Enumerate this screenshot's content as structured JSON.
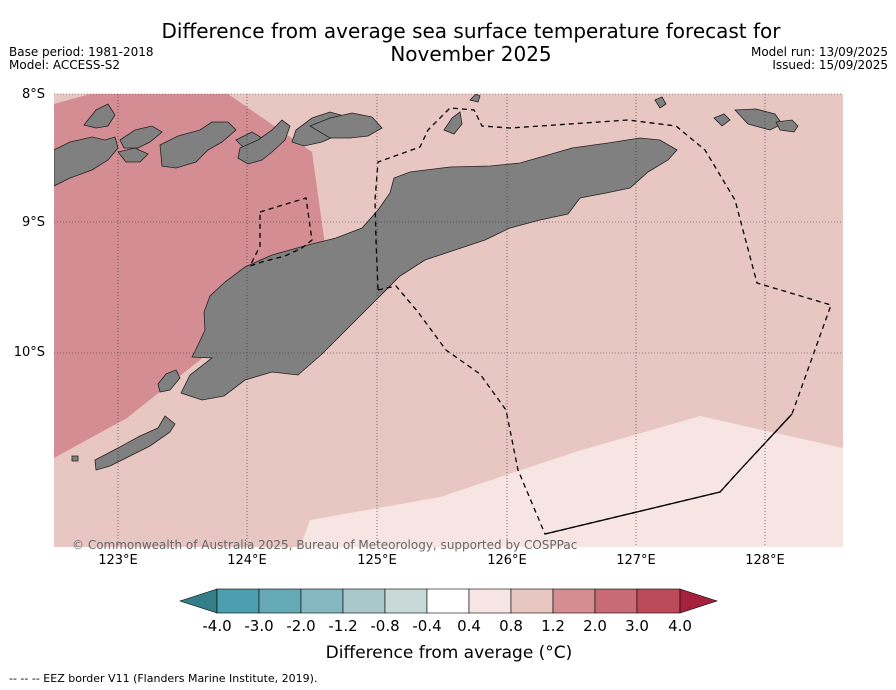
{
  "title": "Difference from average sea surface temperature forecast for November 2025",
  "base_period": "Base period: 1981-2018",
  "model": "Model: ACCESS-S2",
  "model_run": "Model run: 13/09/2025",
  "issued": "Issued: 15/09/2025",
  "copyright": "© Commonwealth of Australia 2025, Bureau of Meteorology, supported by COSPPac",
  "eez_note": "--  --  -- EEZ border V11 (Flanders Marine Institute, 2019).",
  "axes": {
    "lat_labels": [
      "8°S",
      "9°S",
      "10°S"
    ],
    "lon_labels": [
      "123°E",
      "124°E",
      "125°E",
      "126°E",
      "127°E",
      "128°E"
    ]
  },
  "colorbar": {
    "title": "Difference from average (°C)",
    "labels": [
      "-4.0",
      "-3.0",
      "-2.0",
      "-1.2",
      "-0.8",
      "-0.4",
      "0.4",
      "0.8",
      "1.2",
      "2.0",
      "3.0",
      "4.0"
    ],
    "colors": [
      "#4c9fae",
      "#66a9b6",
      "#86b8c2",
      "#a8c8cb",
      "#c8d9d8",
      "#ffffff",
      "#f6e5e2",
      "#e8c6c1",
      "#d58d94",
      "#c96b76",
      "#bd4a59"
    ],
    "under_color": "#347e88",
    "over_color": "#a6213d"
  },
  "colors": {
    "land": "#808080",
    "anomaly_0_4_to_0_8": "#f6e5e2",
    "anomaly_0_8_to_1_2": "#e8c6c1",
    "anomaly_1_2_to_2_0": "#d58d94"
  }
}
